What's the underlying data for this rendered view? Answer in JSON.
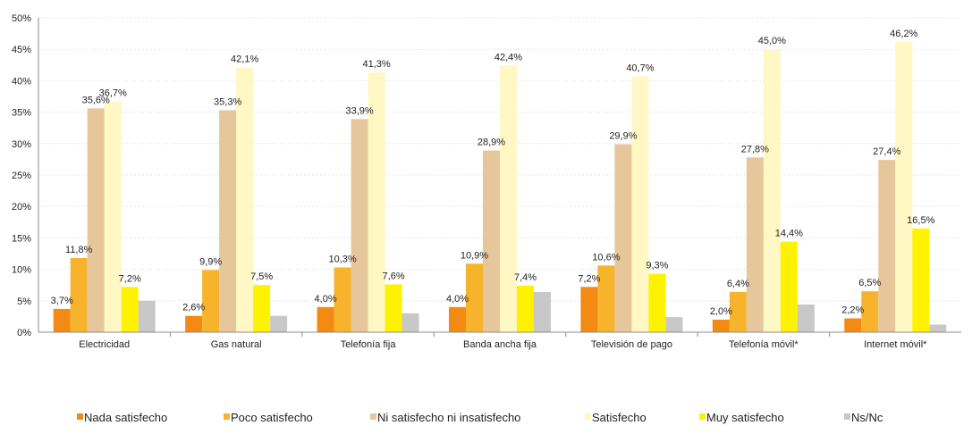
{
  "chart_data": {
    "type": "bar",
    "categories": [
      "Electricidad",
      "Gas natural",
      "Telefonía fija",
      "Banda ancha fija",
      "Televisión de pago",
      "Telefonía móvil*",
      "Internet móvil*"
    ],
    "series": [
      {
        "name": "Nada satisfecho",
        "color": "#F28A14",
        "values": [
          3.7,
          2.6,
          4.0,
          4.0,
          7.2,
          2.0,
          2.2
        ],
        "labels": [
          "3,7%",
          "2,6%",
          "4,0%",
          "4,0%",
          "7,2%",
          "2,0%",
          "2,2%"
        ]
      },
      {
        "name": "Poco satisfecho",
        "color": "#F7B32B",
        "values": [
          11.8,
          9.9,
          10.3,
          10.9,
          10.6,
          6.4,
          6.5
        ],
        "labels": [
          "11,8%",
          "9,9%",
          "10,3%",
          "10,9%",
          "10,6%",
          "6,4%",
          "6,5%"
        ]
      },
      {
        "name": "Ni satisfecho ni insatisfecho",
        "color": "#E6C79C",
        "values": [
          35.6,
          35.3,
          33.9,
          28.9,
          29.9,
          27.8,
          27.4
        ],
        "labels": [
          "35,6%",
          "35,3%",
          "33,9%",
          "28,9%",
          "29,9%",
          "27,8%",
          "27,4%"
        ]
      },
      {
        "name": "Satisfecho",
        "color": "#FFF7C4",
        "values": [
          36.7,
          42.1,
          41.3,
          42.4,
          40.7,
          45.0,
          46.2
        ],
        "labels": [
          "36,7%",
          "42,1%",
          "41,3%",
          "42,4%",
          "40,7%",
          "45,0%",
          "46,2%"
        ]
      },
      {
        "name": "Muy satisfecho",
        "color": "#FFF200",
        "values": [
          7.2,
          7.5,
          7.6,
          7.4,
          9.3,
          14.4,
          16.5
        ],
        "labels": [
          "7,2%",
          "7,5%",
          "7,6%",
          "7,4%",
          "9,3%",
          "14,4%",
          "16,5%"
        ]
      },
      {
        "name": "Ns/Nc",
        "color": "#C8C8C8",
        "values": [
          5.0,
          2.6,
          3.0,
          6.4,
          2.4,
          4.4,
          1.2
        ],
        "labels": []
      }
    ],
    "ylim": [
      0,
      50
    ],
    "y_ticks": [
      "0%",
      "5%",
      "10%",
      "15%",
      "20%",
      "25%",
      "30%",
      "35%",
      "40%",
      "45%",
      "50%"
    ],
    "y_tick_values": [
      0,
      5,
      10,
      15,
      20,
      25,
      30,
      35,
      40,
      45,
      50
    ],
    "grid": true,
    "legend_position": "bottom",
    "title": "",
    "xlabel": "",
    "ylabel": ""
  }
}
